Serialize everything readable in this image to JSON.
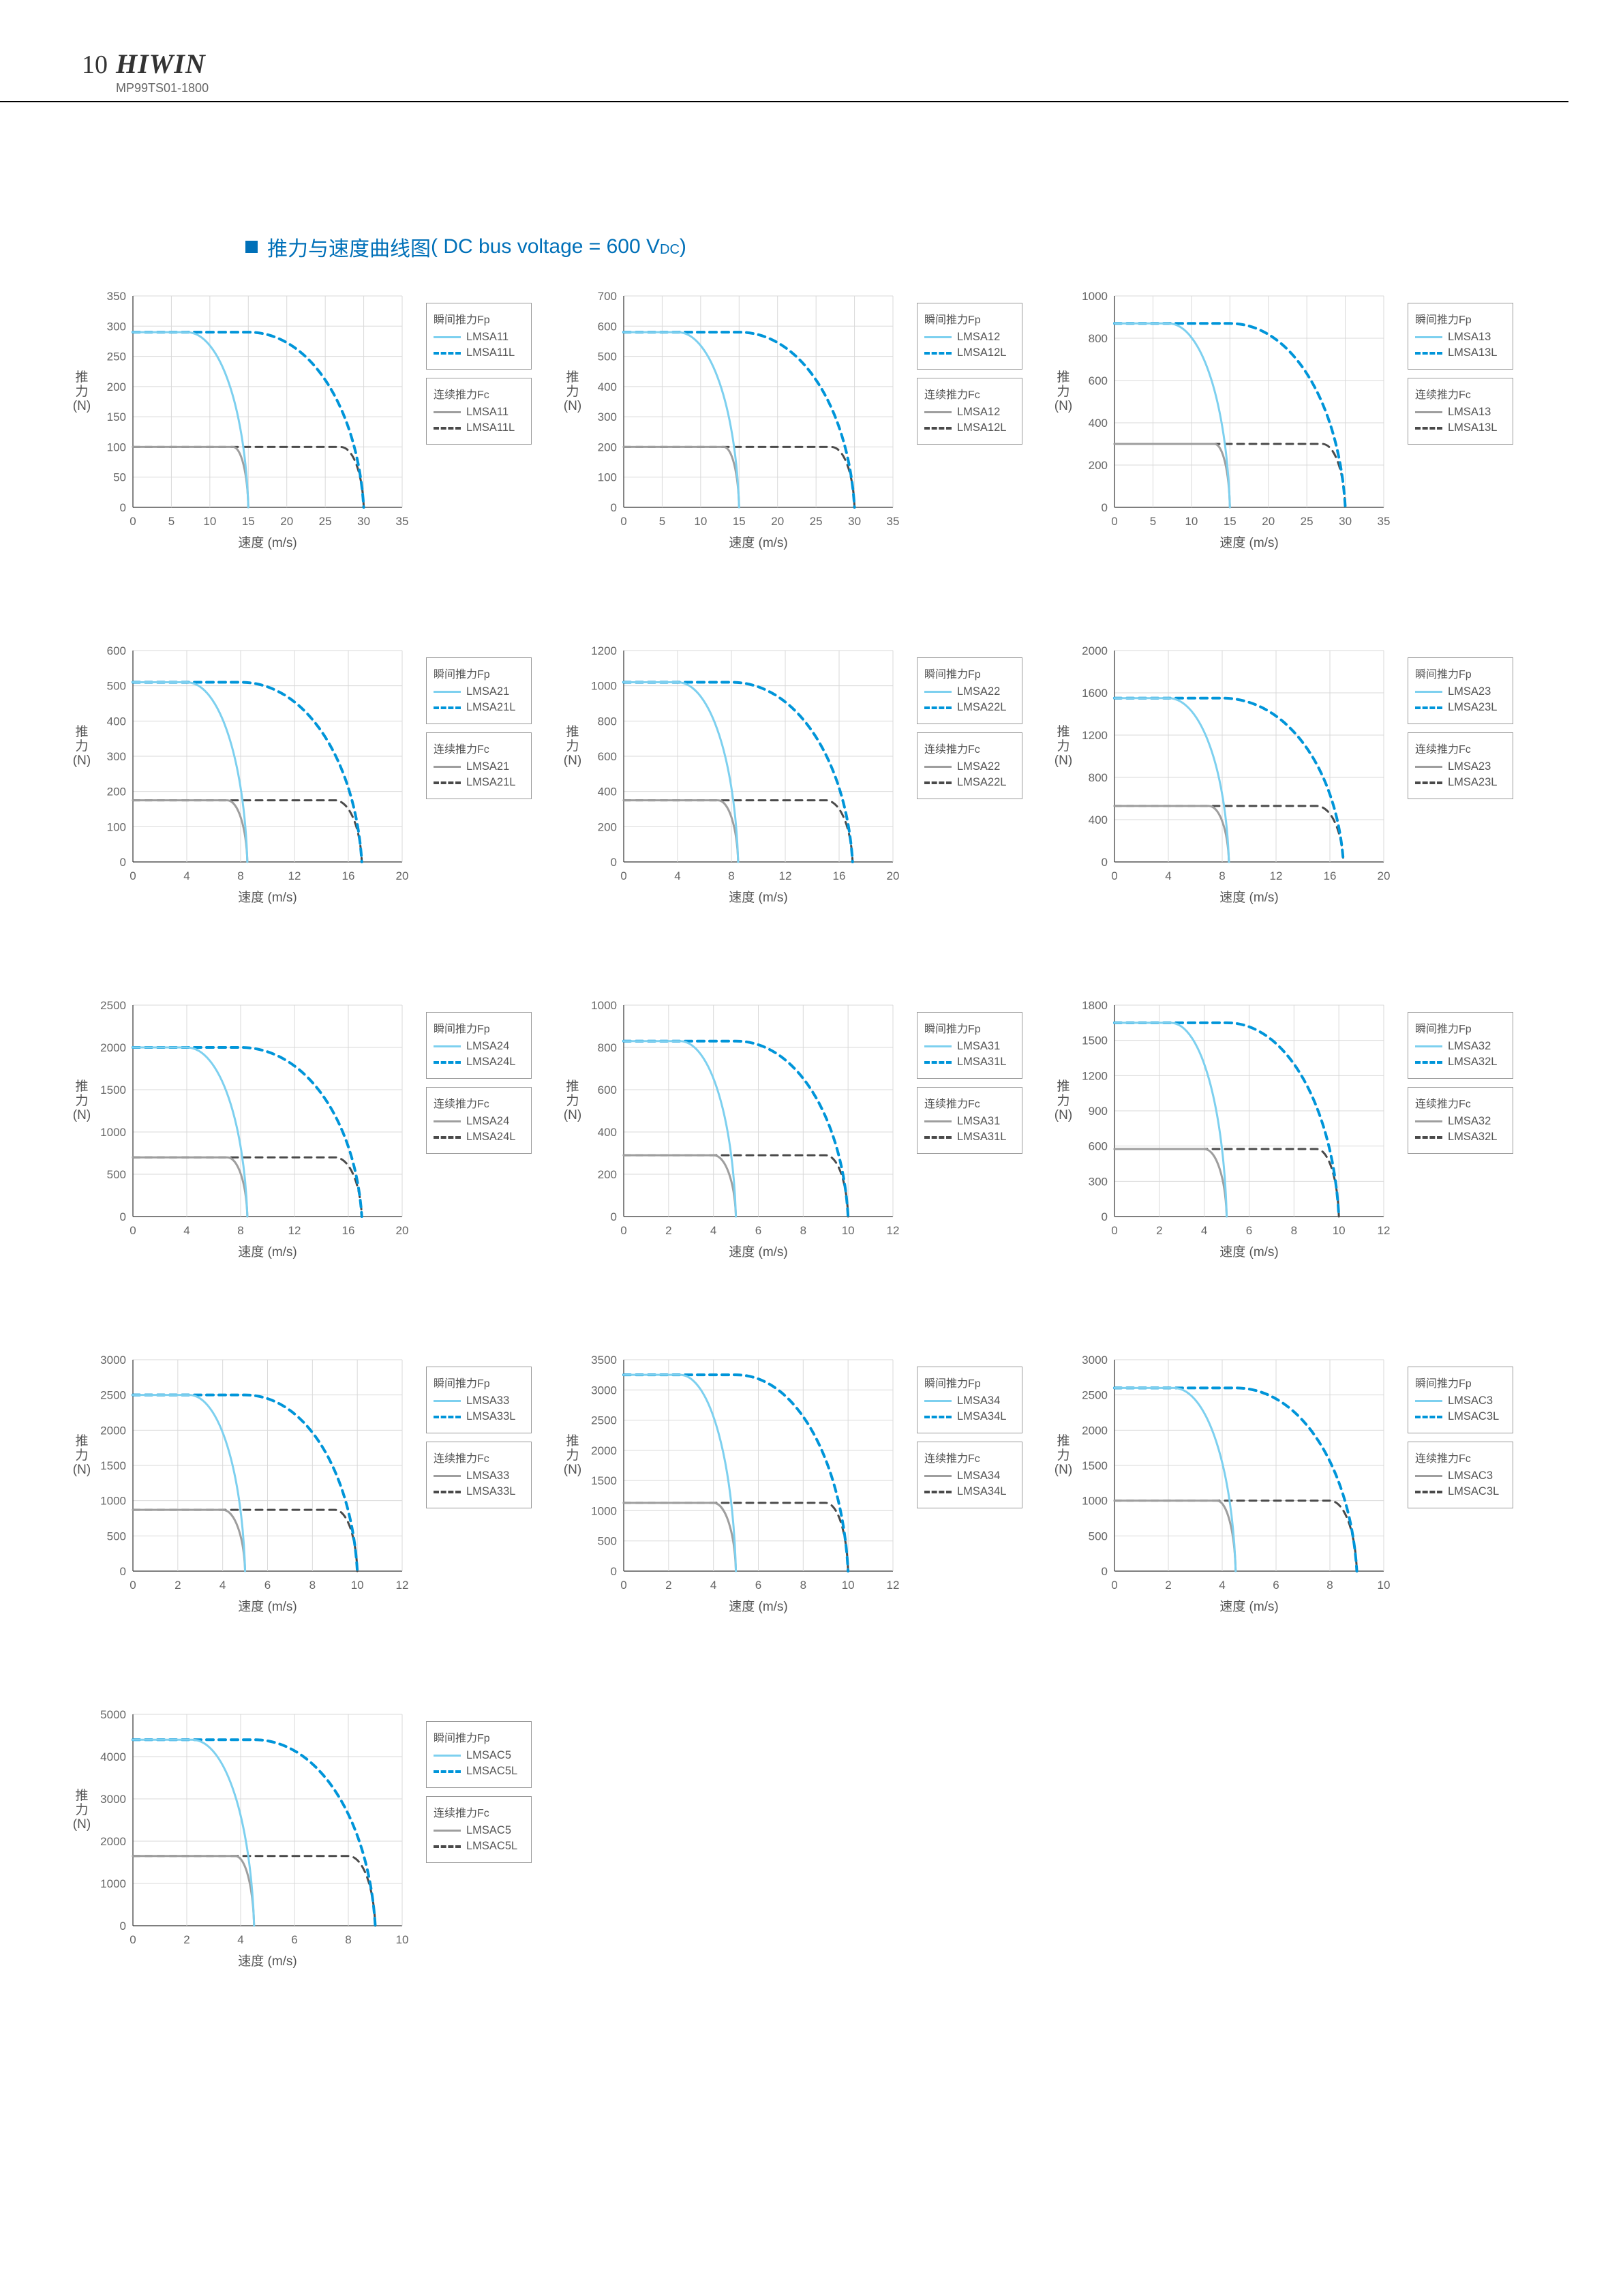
{
  "header": {
    "page_number": "10",
    "brand": "HIWIN",
    "doc_code": "MP99TS01-1800"
  },
  "section_title": {
    "prefix_square_color": "#0070b8",
    "text_zh": "推力与速度曲线图",
    "text_en_open": "( DC bus voltage = 600 V",
    "text_en_sub": "DC",
    "text_en_close": ")"
  },
  "common": {
    "x_axis_label": "速度 (m/s)",
    "y_axis_label_line1": "推",
    "y_axis_label_line2": "力",
    "y_axis_label_line3": "(N)",
    "legend_fp_title": "瞬间推力Fp",
    "legend_fc_title": "连续推力Fc",
    "grid_color": "#d9d9d9",
    "axis_color": "#333333",
    "fp_solid_color": "#7dd0ef",
    "fp_dash_color": "#0095d9",
    "fc_solid_color": "#9e9e9e",
    "fc_dash_color": "#4a4a4a",
    "line_width_fp": 3,
    "line_width_fc": 3,
    "background": "#ffffff",
    "tick_fontsize": 17,
    "label_fontsize": 19
  },
  "charts": [
    {
      "models": {
        "base": "LMSA11",
        "long": "LMSA11L"
      },
      "xlim": [
        0,
        35
      ],
      "xtick": 5,
      "ylim": [
        0,
        350
      ],
      "ytick": 50,
      "fp_solid": [
        [
          0,
          290
        ],
        [
          7,
          290
        ],
        [
          15,
          0
        ]
      ],
      "fp_dash": [
        [
          0,
          290
        ],
        [
          15,
          290
        ],
        [
          30,
          0
        ]
      ],
      "fc_solid": [
        [
          0,
          100
        ],
        [
          13,
          100
        ],
        [
          15,
          0
        ]
      ],
      "fc_dash": [
        [
          0,
          100
        ],
        [
          27,
          100
        ],
        [
          30,
          0
        ]
      ]
    },
    {
      "models": {
        "base": "LMSA12",
        "long": "LMSA12L"
      },
      "xlim": [
        0,
        35
      ],
      "xtick": 5,
      "ylim": [
        0,
        700
      ],
      "ytick": 100,
      "fp_solid": [
        [
          0,
          580
        ],
        [
          7,
          580
        ],
        [
          15,
          0
        ]
      ],
      "fp_dash": [
        [
          0,
          580
        ],
        [
          15,
          580
        ],
        [
          30,
          0
        ]
      ],
      "fc_solid": [
        [
          0,
          200
        ],
        [
          13,
          200
        ],
        [
          15,
          0
        ]
      ],
      "fc_dash": [
        [
          0,
          200
        ],
        [
          27,
          200
        ],
        [
          30,
          0
        ]
      ]
    },
    {
      "models": {
        "base": "LMSA13",
        "long": "LMSA13L"
      },
      "xlim": [
        0,
        35
      ],
      "xtick": 5,
      "ylim": [
        0,
        1000
      ],
      "ytick": 200,
      "fp_solid": [
        [
          0,
          870
        ],
        [
          7,
          870
        ],
        [
          15,
          0
        ]
      ],
      "fp_dash": [
        [
          0,
          870
        ],
        [
          15,
          870
        ],
        [
          30,
          0
        ]
      ],
      "fc_solid": [
        [
          0,
          300
        ],
        [
          13,
          300
        ],
        [
          15,
          0
        ]
      ],
      "fc_dash": [
        [
          0,
          300
        ],
        [
          27,
          300
        ],
        [
          30,
          0
        ]
      ]
    },
    {
      "models": {
        "base": "LMSA21",
        "long": "LMSA21L"
      },
      "xlim": [
        0,
        20
      ],
      "xtick": 4,
      "ylim": [
        0,
        600
      ],
      "ytick": 100,
      "fp_solid": [
        [
          0,
          510
        ],
        [
          4,
          510
        ],
        [
          8.5,
          0
        ]
      ],
      "fp_dash": [
        [
          0,
          510
        ],
        [
          8,
          510
        ],
        [
          17,
          0
        ]
      ],
      "fc_solid": [
        [
          0,
          175
        ],
        [
          7,
          175
        ],
        [
          8.5,
          0
        ]
      ],
      "fc_dash": [
        [
          0,
          175
        ],
        [
          15,
          175
        ],
        [
          17,
          0
        ]
      ]
    },
    {
      "models": {
        "base": "LMSA22",
        "long": "LMSA22L"
      },
      "xlim": [
        0,
        20
      ],
      "xtick": 4,
      "ylim": [
        0,
        1200
      ],
      "ytick": 200,
      "fp_solid": [
        [
          0,
          1020
        ],
        [
          4,
          1020
        ],
        [
          8.5,
          0
        ]
      ],
      "fp_dash": [
        [
          0,
          1020
        ],
        [
          8,
          1020
        ],
        [
          17,
          0
        ]
      ],
      "fc_solid": [
        [
          0,
          350
        ],
        [
          7,
          350
        ],
        [
          8.5,
          0
        ]
      ],
      "fc_dash": [
        [
          0,
          350
        ],
        [
          15,
          350
        ],
        [
          17,
          0
        ]
      ]
    },
    {
      "models": {
        "base": "LMSA23",
        "long": "LMSA23L"
      },
      "xlim": [
        0,
        20
      ],
      "xtick": 4,
      "ylim": [
        0,
        2000
      ],
      "ytick": 400,
      "fp_solid": [
        [
          0,
          1550
        ],
        [
          4,
          1550
        ],
        [
          8.5,
          0
        ]
      ],
      "fp_dash": [
        [
          0,
          1550
        ],
        [
          8,
          1550
        ],
        [
          17,
          0
        ]
      ],
      "fc_solid": [
        [
          0,
          530
        ],
        [
          7,
          530
        ],
        [
          8.5,
          0
        ]
      ],
      "fc_dash": [
        [
          0,
          530
        ],
        [
          15,
          530
        ],
        [
          17,
          0
        ]
      ]
    },
    {
      "models": {
        "base": "LMSA24",
        "long": "LMSA24L"
      },
      "xlim": [
        0,
        20
      ],
      "xtick": 4,
      "ylim": [
        0,
        2500
      ],
      "ytick": 500,
      "fp_solid": [
        [
          0,
          2000
        ],
        [
          4,
          2000
        ],
        [
          8.5,
          0
        ]
      ],
      "fp_dash": [
        [
          0,
          2000
        ],
        [
          8,
          2000
        ],
        [
          17,
          0
        ]
      ],
      "fc_solid": [
        [
          0,
          700
        ],
        [
          7,
          700
        ],
        [
          8.5,
          0
        ]
      ],
      "fc_dash": [
        [
          0,
          700
        ],
        [
          15,
          700
        ],
        [
          17,
          0
        ]
      ]
    },
    {
      "models": {
        "base": "LMSA31",
        "long": "LMSA31L"
      },
      "xlim": [
        0,
        12
      ],
      "xtick": 2,
      "ylim": [
        0,
        1000
      ],
      "ytick": 200,
      "fp_solid": [
        [
          0,
          830
        ],
        [
          2.5,
          830
        ],
        [
          5,
          0
        ]
      ],
      "fp_dash": [
        [
          0,
          830
        ],
        [
          5,
          830
        ],
        [
          10,
          0
        ]
      ],
      "fc_solid": [
        [
          0,
          290
        ],
        [
          4,
          290
        ],
        [
          5,
          0
        ]
      ],
      "fc_dash": [
        [
          0,
          290
        ],
        [
          9,
          290
        ],
        [
          10,
          0
        ]
      ]
    },
    {
      "models": {
        "base": "LMSA32",
        "long": "LMSA32L"
      },
      "xlim": [
        0,
        12
      ],
      "xtick": 2,
      "ylim": [
        0,
        1800
      ],
      "ytick": 300,
      "fp_solid": [
        [
          0,
          1650
        ],
        [
          2.5,
          1650
        ],
        [
          5,
          0
        ]
      ],
      "fp_dash": [
        [
          0,
          1650
        ],
        [
          5,
          1650
        ],
        [
          10,
          0
        ]
      ],
      "fc_solid": [
        [
          0,
          575
        ],
        [
          4,
          575
        ],
        [
          5,
          0
        ]
      ],
      "fc_dash": [
        [
          0,
          575
        ],
        [
          9,
          575
        ],
        [
          10,
          0
        ]
      ]
    },
    {
      "models": {
        "base": "LMSA33",
        "long": "LMSA33L"
      },
      "xlim": [
        0,
        12
      ],
      "xtick": 2,
      "ylim": [
        0,
        3000
      ],
      "ytick": 500,
      "fp_solid": [
        [
          0,
          2500
        ],
        [
          2.5,
          2500
        ],
        [
          5,
          0
        ]
      ],
      "fp_dash": [
        [
          0,
          2500
        ],
        [
          5,
          2500
        ],
        [
          10,
          0
        ]
      ],
      "fc_solid": [
        [
          0,
          870
        ],
        [
          4,
          870
        ],
        [
          5,
          0
        ]
      ],
      "fc_dash": [
        [
          0,
          870
        ],
        [
          9,
          870
        ],
        [
          10,
          0
        ]
      ]
    },
    {
      "models": {
        "base": "LMSA34",
        "long": "LMSA34L"
      },
      "xlim": [
        0,
        12
      ],
      "xtick": 2,
      "ylim": [
        0,
        3500
      ],
      "ytick": 500,
      "fp_solid": [
        [
          0,
          3250
        ],
        [
          2.5,
          3250
        ],
        [
          5,
          0
        ]
      ],
      "fp_dash": [
        [
          0,
          3250
        ],
        [
          5,
          3250
        ],
        [
          10,
          0
        ]
      ],
      "fc_solid": [
        [
          0,
          1130
        ],
        [
          4,
          1130
        ],
        [
          5,
          0
        ]
      ],
      "fc_dash": [
        [
          0,
          1130
        ],
        [
          9,
          1130
        ],
        [
          10,
          0
        ]
      ]
    },
    {
      "models": {
        "base": "LMSAC3",
        "long": "LMSAC3L"
      },
      "xlim": [
        0,
        10
      ],
      "xtick": 2,
      "ylim": [
        0,
        3000
      ],
      "ytick": 500,
      "fp_solid": [
        [
          0,
          2600
        ],
        [
          2.2,
          2600
        ],
        [
          4.5,
          0
        ]
      ],
      "fp_dash": [
        [
          0,
          2600
        ],
        [
          4.5,
          2600
        ],
        [
          9,
          0
        ]
      ],
      "fc_solid": [
        [
          0,
          1000
        ],
        [
          3.8,
          1000
        ],
        [
          4.5,
          0
        ]
      ],
      "fc_dash": [
        [
          0,
          1000
        ],
        [
          8,
          1000
        ],
        [
          9,
          0
        ]
      ]
    },
    {
      "models": {
        "base": "LMSAC5",
        "long": "LMSAC5L"
      },
      "xlim": [
        0,
        10
      ],
      "xtick": 2,
      "ylim": [
        0,
        5000
      ],
      "ytick": 1000,
      "fp_solid": [
        [
          0,
          4400
        ],
        [
          2.2,
          4400
        ],
        [
          4.5,
          0
        ]
      ],
      "fp_dash": [
        [
          0,
          4400
        ],
        [
          4.5,
          4400
        ],
        [
          9,
          0
        ]
      ],
      "fc_solid": [
        [
          0,
          1650
        ],
        [
          3.8,
          1650
        ],
        [
          4.5,
          0
        ]
      ],
      "fc_dash": [
        [
          0,
          1650
        ],
        [
          8,
          1650
        ],
        [
          9,
          0
        ]
      ]
    }
  ]
}
